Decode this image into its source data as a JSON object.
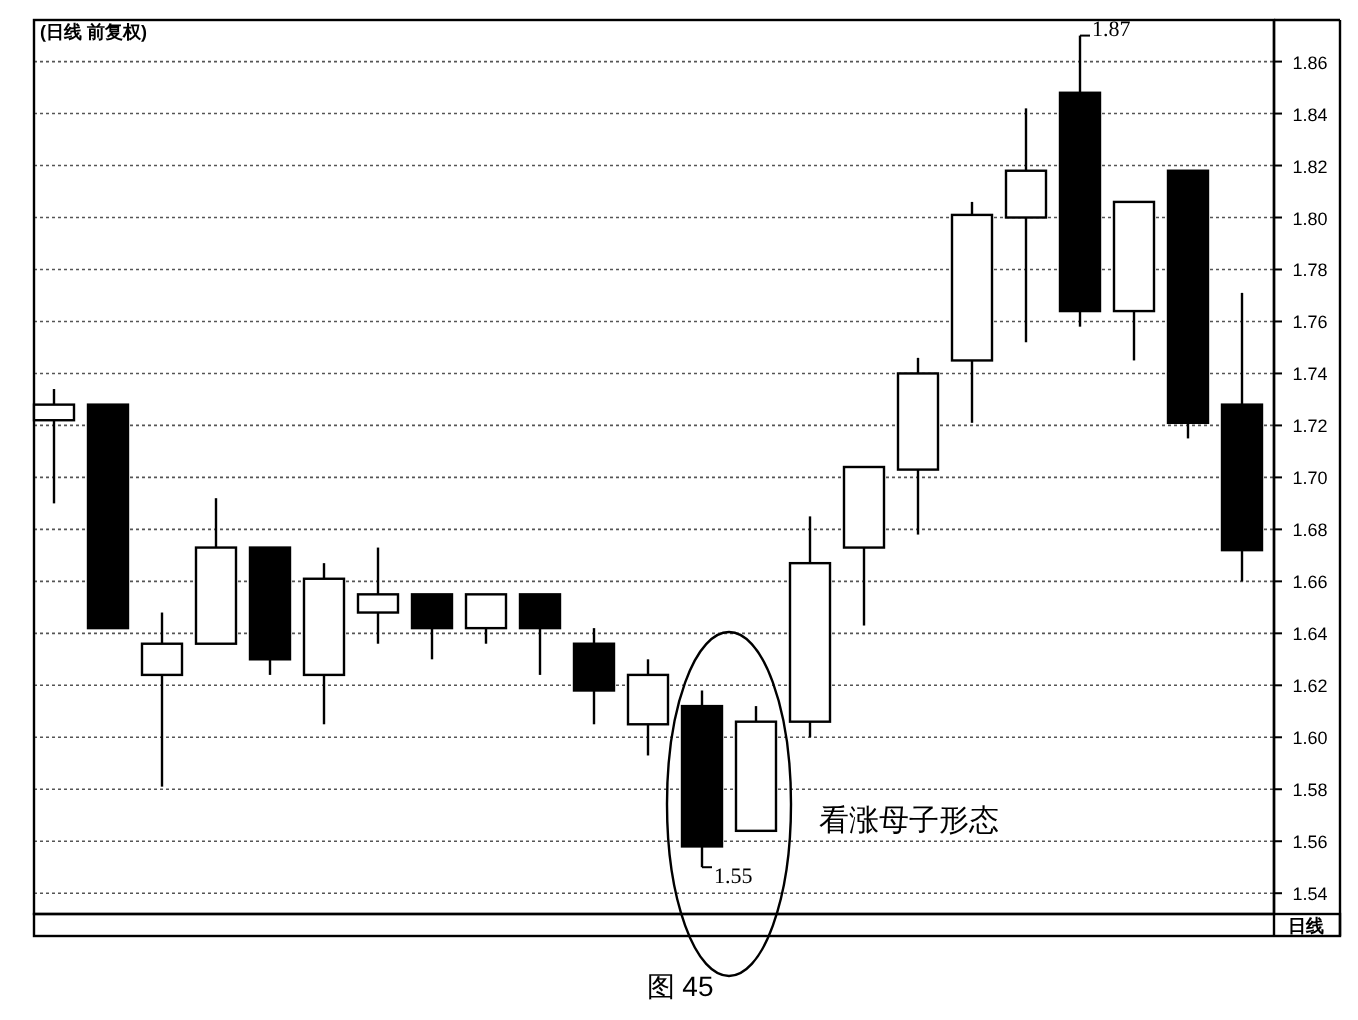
{
  "chart_data": {
    "type": "candlestick",
    "title": "(日线 前复权)",
    "categories": [
      null,
      null,
      null,
      null,
      null,
      null,
      null,
      null,
      null,
      null,
      null,
      null,
      null,
      null,
      null,
      null,
      null,
      null,
      null,
      null,
      null,
      null,
      null
    ],
    "ohlc": [
      [
        1.722,
        1.734,
        1.69,
        1.728
      ],
      [
        1.728,
        1.728,
        1.642,
        1.642
      ],
      [
        1.624,
        1.648,
        1.581,
        1.636
      ],
      [
        1.636,
        1.692,
        1.636,
        1.673
      ],
      [
        1.673,
        1.673,
        1.624,
        1.63
      ],
      [
        1.624,
        1.667,
        1.605,
        1.661
      ],
      [
        1.648,
        1.673,
        1.636,
        1.655
      ],
      [
        1.655,
        1.655,
        1.63,
        1.642
      ],
      [
        1.642,
        1.655,
        1.636,
        1.655
      ],
      [
        1.655,
        1.655,
        1.624,
        1.642
      ],
      [
        1.636,
        1.642,
        1.605,
        1.618
      ],
      [
        1.605,
        1.63,
        1.593,
        1.624
      ],
      [
        1.612,
        1.618,
        1.55,
        1.558
      ],
      [
        1.564,
        1.612,
        1.564,
        1.606
      ],
      [
        1.606,
        1.685,
        1.6,
        1.667
      ],
      [
        1.673,
        1.704,
        1.643,
        1.704
      ],
      [
        1.703,
        1.746,
        1.678,
        1.74
      ],
      [
        1.745,
        1.806,
        1.721,
        1.801
      ],
      [
        1.8,
        1.842,
        1.752,
        1.818
      ],
      [
        1.848,
        1.87,
        1.758,
        1.764
      ],
      [
        1.764,
        1.806,
        1.745,
        1.806
      ],
      [
        1.818,
        1.818,
        1.715,
        1.721
      ],
      [
        1.728,
        1.771,
        1.66,
        1.672
      ]
    ],
    "ylim": [
      1.532,
      1.876
    ],
    "yticks": [
      1.54,
      1.56,
      1.58,
      {
        "value": 1.6,
        "label": "1.60"
      },
      1.62,
      1.64,
      1.66,
      1.68,
      {
        "value": 1.7,
        "label": "1.70"
      },
      1.72,
      1.74,
      1.76,
      1.78,
      {
        "value": 1.8,
        "label": "1.80"
      },
      1.82,
      1.84,
      1.86
    ],
    "grid": "y",
    "annotations": [
      "1.87",
      "1.55",
      "看涨母子形态",
      "日线",
      "图 45"
    ]
  }
}
